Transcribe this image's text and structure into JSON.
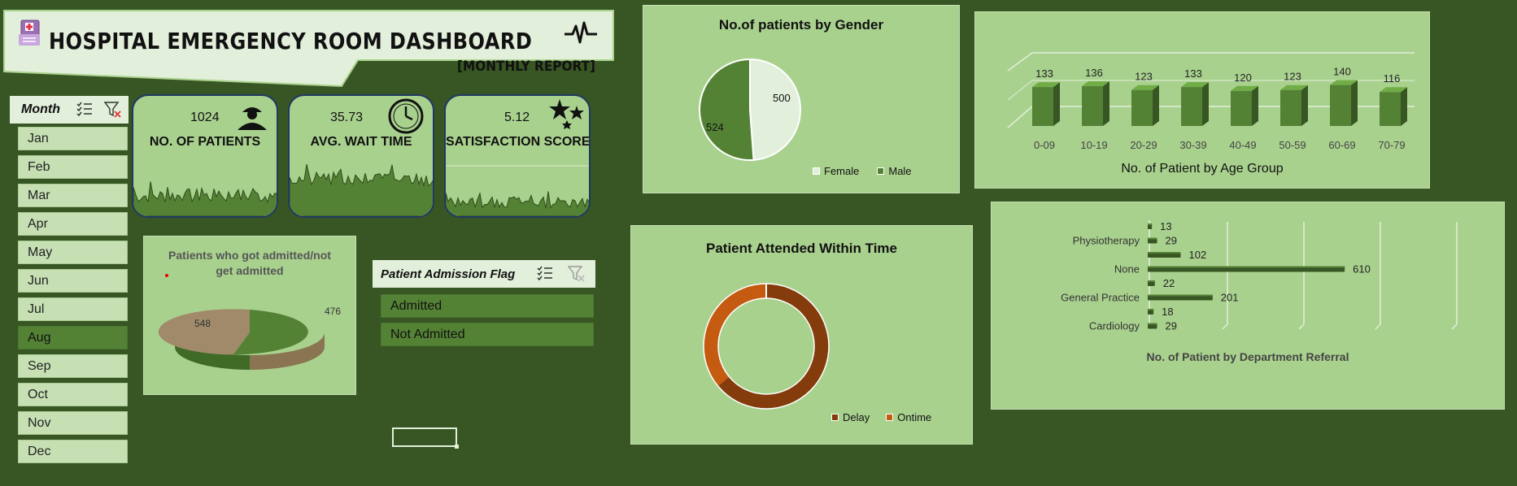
{
  "header": {
    "title": "HOSPITAL EMERGENCY ROOM DASHBOARD",
    "subtitle": "MONTHLY REPORT",
    "icons": [
      "hospital-file-icon",
      "heartbeat-icon"
    ]
  },
  "month_slicer": {
    "title": "Month",
    "icons": [
      "multi-select-icon",
      "clear-filter-icon"
    ],
    "items": [
      "Jan",
      "Feb",
      "Mar",
      "Apr",
      "May",
      "Jun",
      "Jul",
      "Aug",
      "Sep",
      "Oct",
      "Nov",
      "Dec"
    ],
    "selected": "Aug"
  },
  "kpis": [
    {
      "value": "1024",
      "label": "NO. OF PATIENTS",
      "icon": "nurse-icon"
    },
    {
      "value": "35.73",
      "label": "AVG. WAIT TIME",
      "icon": "clock-icon"
    },
    {
      "value": "5.12",
      "label": "SATISFACTION SCORE",
      "icon": "stars-icon"
    }
  ],
  "admission_slicer": {
    "title": "Patient Admission Flag",
    "icons": [
      "multi-select-icon",
      "clear-filter-icon"
    ],
    "items": [
      "Admitted",
      "Not Admitted"
    ]
  },
  "colors": {
    "background": "#375623",
    "panel": "#a9d18e",
    "dark_green": "#548235",
    "light_green": "#e2efda",
    "delay": "#843c0c",
    "ontime": "#c55a11"
  },
  "chart_data": [
    {
      "type": "pie",
      "title": "Patients who got admitted/not get admitted",
      "values": [
        548,
        476
      ],
      "labels": [
        "548",
        "476"
      ],
      "colors": [
        "#548235",
        "#a08a6a"
      ]
    },
    {
      "type": "pie",
      "title": "No.of patients by Gender",
      "categories": [
        "Female",
        "Male"
      ],
      "values": [
        500,
        524
      ],
      "colors": [
        "#e2efda",
        "#548235"
      ],
      "legend": "bottom"
    },
    {
      "type": "bar",
      "title": "No. of Patient by Age Group",
      "categories": [
        "0-09",
        "10-19",
        "20-29",
        "30-39",
        "40-49",
        "50-59",
        "60-69",
        "70-79"
      ],
      "values": [
        133,
        136,
        123,
        133,
        120,
        123,
        140,
        116
      ]
    },
    {
      "type": "pie",
      "title": "Patient Attended Within Time",
      "categories": [
        "Delay",
        "Ontime"
      ],
      "values": [
        0.64,
        0.36
      ],
      "colors": [
        "#843c0c",
        "#c55a11"
      ],
      "legend": "bottom-right"
    },
    {
      "type": "bar",
      "orientation": "horizontal",
      "title": "No. of Patient by Department Referral",
      "categories": [
        "",
        "Physiotherapy",
        "",
        "None",
        "",
        "General Practice",
        "",
        "Cardiology"
      ],
      "values": [
        13,
        29,
        102,
        610,
        22,
        201,
        18,
        29
      ],
      "xlim": [
        0,
        800
      ]
    }
  ]
}
